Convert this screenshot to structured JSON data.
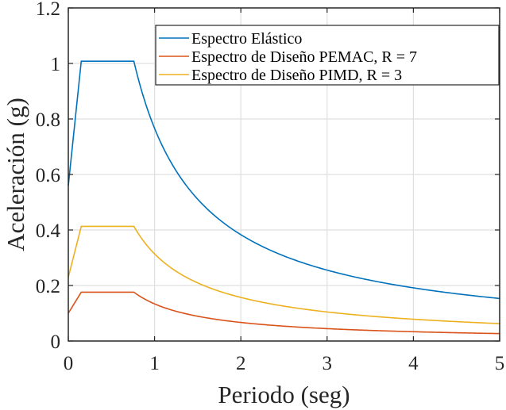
{
  "chart_data": {
    "type": "line",
    "title": "",
    "xlabel": "Periodo (seg)",
    "ylabel": "Aceleración (g)",
    "xlim": [
      0,
      5
    ],
    "ylim": [
      0,
      1.2
    ],
    "grid": true,
    "legend_position": "top-right",
    "x_ticks": [
      0,
      1,
      2,
      3,
      4,
      5
    ],
    "x_tick_labels": [
      "0",
      "1",
      "2",
      "3",
      "4",
      "5"
    ],
    "y_ticks": [
      0,
      0.2,
      0.4,
      0.6,
      0.8,
      1,
      1.2
    ],
    "y_tick_labels": [
      "0",
      "0.2",
      "0.4",
      "0.6",
      "0.8",
      "1",
      "1.2"
    ],
    "series": [
      {
        "name": "Espectro Elástico",
        "color": "#0072BD",
        "t0": 0,
        "a0": 0.56,
        "tb": 0.15,
        "tc": 0.76,
        "plateau": 1.008
      },
      {
        "name": "Espectro de Diseño PEMAC, R = 7",
        "color": "#D95319",
        "t0": 0,
        "a0": 0.1,
        "tb": 0.15,
        "tc": 0.76,
        "plateau": 0.176
      },
      {
        "name": "Espectro de Diseño PIMD, R = 3",
        "color": "#EDB120",
        "t0": 0,
        "a0": 0.23,
        "tb": 0.15,
        "tc": 0.76,
        "plateau": 0.413
      }
    ]
  }
}
